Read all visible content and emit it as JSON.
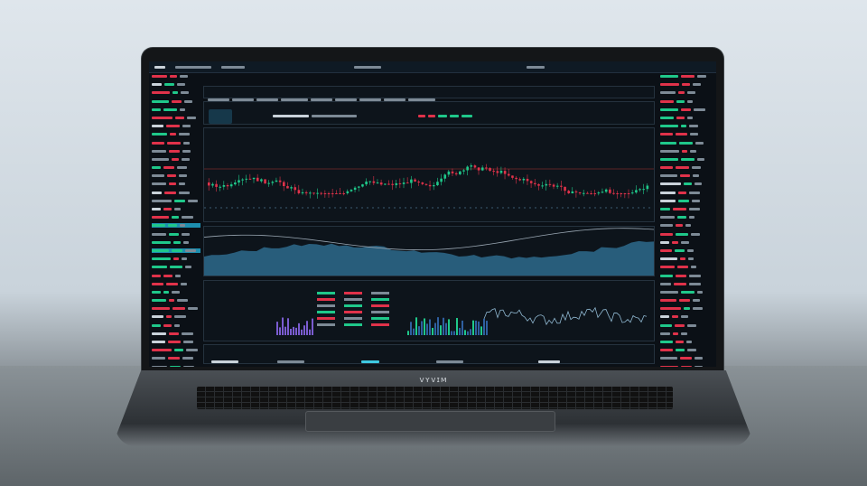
{
  "laptop": {
    "brand_logo": "VYVIM"
  },
  "colors": {
    "up": "#1fc88a",
    "down": "#e0324a",
    "accent": "#3ec9e0",
    "background": "#0b1016",
    "area_fill": "#2f6f93"
  },
  "dashboard": {
    "main_chart": {
      "type": "candlestick"
    },
    "secondary_chart": {
      "type": "area"
    },
    "volume_chart": {
      "type": "bar"
    },
    "mini_line_chart": {
      "type": "line"
    }
  }
}
